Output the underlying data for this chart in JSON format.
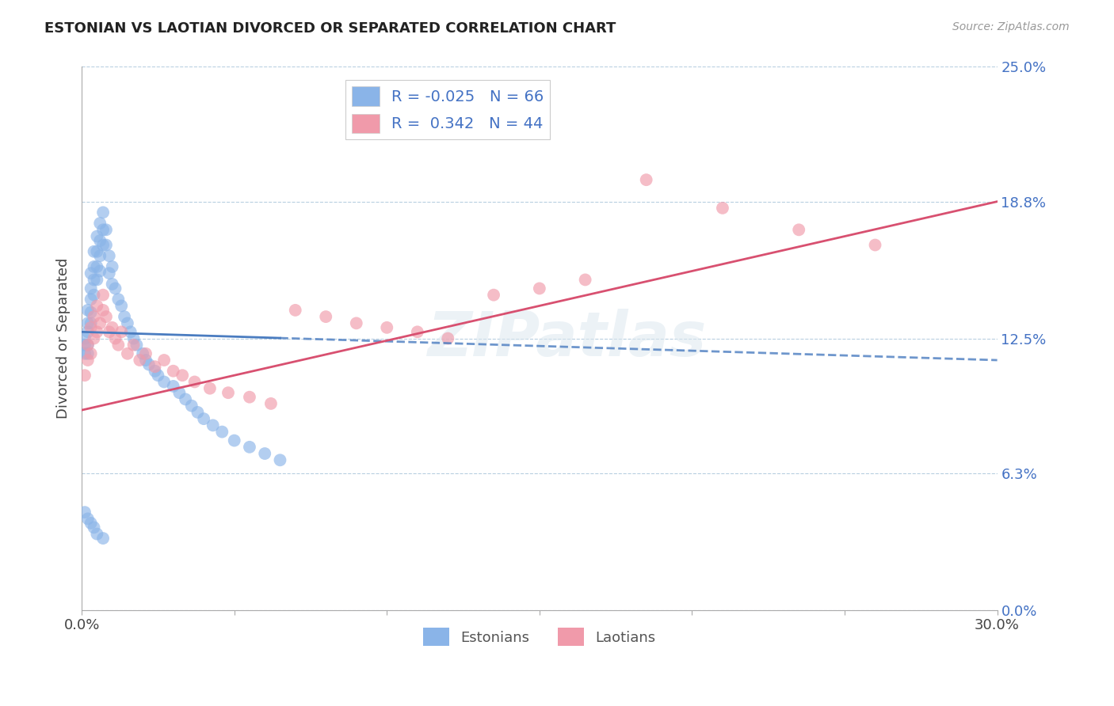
{
  "title": "ESTONIAN VS LAOTIAN DIVORCED OR SEPARATED CORRELATION CHART",
  "source": "Source: ZipAtlas.com",
  "ylabel": "Divorced or Separated",
  "xmin": 0.0,
  "xmax": 0.3,
  "ymin": 0.0,
  "ymax": 0.25,
  "yticks": [
    0.0,
    0.063,
    0.125,
    0.188,
    0.25
  ],
  "ytick_labels": [
    "0.0%",
    "6.3%",
    "12.5%",
    "18.8%",
    "25.0%"
  ],
  "xticks": [
    0.0,
    0.05,
    0.1,
    0.15,
    0.2,
    0.25,
    0.3
  ],
  "xtick_labels": [
    "0.0%",
    "",
    "",
    "",
    "",
    "",
    "30.0%"
  ],
  "color_estonian": "#8ab4e8",
  "color_laotian": "#f09aaa",
  "color_line_estonian": "#4a7cc0",
  "color_line_laotian": "#d85070",
  "watermark": "ZIPatlas",
  "estonian_x": [
    0.001,
    0.001,
    0.001,
    0.002,
    0.002,
    0.002,
    0.002,
    0.002,
    0.003,
    0.003,
    0.003,
    0.003,
    0.003,
    0.004,
    0.004,
    0.004,
    0.004,
    0.005,
    0.005,
    0.005,
    0.005,
    0.006,
    0.006,
    0.006,
    0.006,
    0.007,
    0.007,
    0.007,
    0.008,
    0.008,
    0.009,
    0.009,
    0.01,
    0.01,
    0.011,
    0.012,
    0.013,
    0.014,
    0.015,
    0.016,
    0.017,
    0.018,
    0.02,
    0.021,
    0.022,
    0.024,
    0.025,
    0.027,
    0.03,
    0.032,
    0.034,
    0.036,
    0.038,
    0.04,
    0.043,
    0.046,
    0.05,
    0.055,
    0.06,
    0.065,
    0.001,
    0.002,
    0.003,
    0.004,
    0.005,
    0.007
  ],
  "estonian_y": [
    0.125,
    0.122,
    0.118,
    0.138,
    0.132,
    0.128,
    0.122,
    0.118,
    0.155,
    0.148,
    0.143,
    0.137,
    0.132,
    0.165,
    0.158,
    0.152,
    0.145,
    0.172,
    0.165,
    0.158,
    0.152,
    0.178,
    0.17,
    0.163,
    0.156,
    0.183,
    0.175,
    0.168,
    0.175,
    0.168,
    0.163,
    0.155,
    0.158,
    0.15,
    0.148,
    0.143,
    0.14,
    0.135,
    0.132,
    0.128,
    0.125,
    0.122,
    0.118,
    0.115,
    0.113,
    0.11,
    0.108,
    0.105,
    0.103,
    0.1,
    0.097,
    0.094,
    0.091,
    0.088,
    0.085,
    0.082,
    0.078,
    0.075,
    0.072,
    0.069,
    0.045,
    0.042,
    0.04,
    0.038,
    0.035,
    0.033
  ],
  "laotian_x": [
    0.001,
    0.002,
    0.002,
    0.003,
    0.003,
    0.004,
    0.004,
    0.005,
    0.005,
    0.006,
    0.007,
    0.007,
    0.008,
    0.009,
    0.01,
    0.011,
    0.012,
    0.013,
    0.015,
    0.017,
    0.019,
    0.021,
    0.024,
    0.027,
    0.03,
    0.033,
    0.037,
    0.042,
    0.048,
    0.055,
    0.062,
    0.07,
    0.08,
    0.09,
    0.1,
    0.11,
    0.12,
    0.135,
    0.15,
    0.165,
    0.185,
    0.21,
    0.235,
    0.26
  ],
  "laotian_y": [
    0.108,
    0.115,
    0.122,
    0.118,
    0.13,
    0.125,
    0.135,
    0.128,
    0.14,
    0.132,
    0.138,
    0.145,
    0.135,
    0.128,
    0.13,
    0.125,
    0.122,
    0.128,
    0.118,
    0.122,
    0.115,
    0.118,
    0.112,
    0.115,
    0.11,
    0.108,
    0.105,
    0.102,
    0.1,
    0.098,
    0.095,
    0.138,
    0.135,
    0.132,
    0.13,
    0.128,
    0.125,
    0.145,
    0.148,
    0.152,
    0.198,
    0.185,
    0.175,
    0.168
  ],
  "line_est_x0": 0.0,
  "line_est_x1": 0.3,
  "line_est_y0": 0.128,
  "line_est_y1": 0.115,
  "line_est_solid_end": 0.065,
  "line_lao_x0": 0.0,
  "line_lao_x1": 0.3,
  "line_lao_y0": 0.092,
  "line_lao_y1": 0.188
}
